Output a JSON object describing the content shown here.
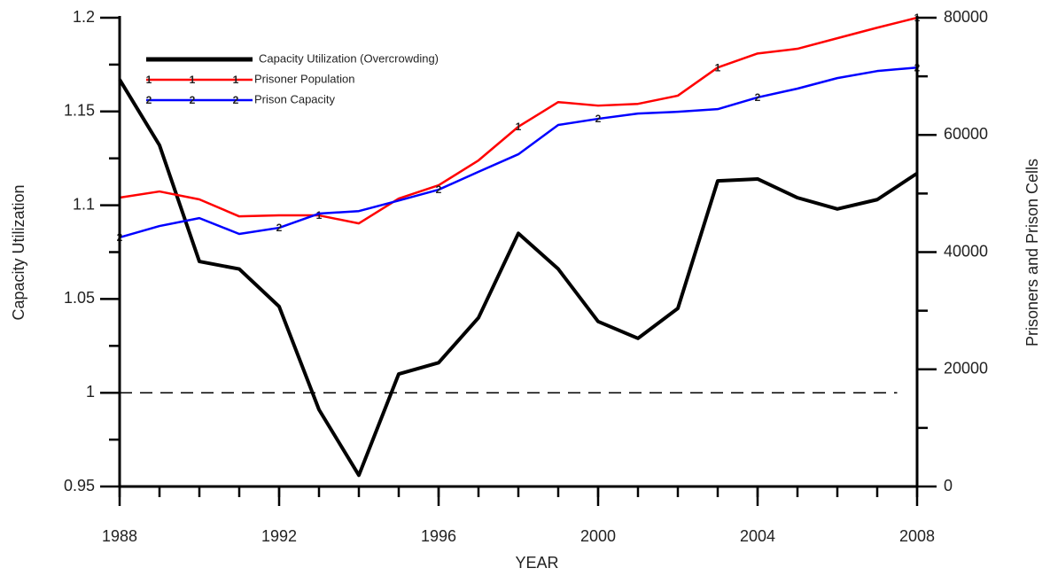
{
  "chart_data": {
    "type": "line",
    "x_label": "YEAR",
    "y_label": "Capacity Utilization",
    "y2_label": "Prisoners and Prison Cells",
    "x": [
      1988,
      1989,
      1990,
      1991,
      1992,
      1993,
      1994,
      1995,
      1996,
      1997,
      1998,
      1999,
      2000,
      2001,
      2002,
      2003,
      2004,
      2005,
      2006,
      2007,
      2008
    ],
    "xlim": [
      1988,
      2008
    ],
    "xticks": [
      1988,
      1992,
      1996,
      2000,
      2004,
      2008
    ],
    "ylim": [
      0.95,
      1.2
    ],
    "yticks": [
      0.95,
      1,
      1.05,
      1.1,
      1.15,
      1.2
    ],
    "y2lim": [
      0,
      80000
    ],
    "y2ticks": [
      0,
      20000,
      40000,
      60000,
      80000
    ],
    "reference_line": 1,
    "series": [
      {
        "name": "Capacity Utilization (Overcrowding)",
        "color": "#000000",
        "axis": "y",
        "values": [
          1.167,
          1.132,
          1.07,
          1.066,
          1.046,
          0.991,
          0.956,
          1.01,
          1.016,
          1.04,
          1.085,
          1.066,
          1.038,
          1.029,
          1.045,
          1.113,
          1.114,
          1.104,
          1.098,
          1.103,
          1.117
        ]
      },
      {
        "name": "Prisoner Population",
        "color": "#ff0000",
        "axis": "y2",
        "marker": "1",
        "values": [
          49300,
          50350,
          49000,
          46100,
          46270,
          46270,
          44900,
          49140,
          51400,
          55650,
          61400,
          65600,
          65000,
          65300,
          66700,
          71500,
          73900,
          74700,
          76500,
          78300,
          80000
        ]
      },
      {
        "name": "Prison Capacity",
        "color": "#0000ff",
        "axis": "y2",
        "marker": "2",
        "values": [
          42500,
          44450,
          45800,
          43100,
          44150,
          46570,
          47000,
          48800,
          50650,
          53700,
          56700,
          61700,
          62750,
          63650,
          63950,
          64400,
          66400,
          67900,
          69700,
          70900,
          71500
        ]
      }
    ]
  }
}
